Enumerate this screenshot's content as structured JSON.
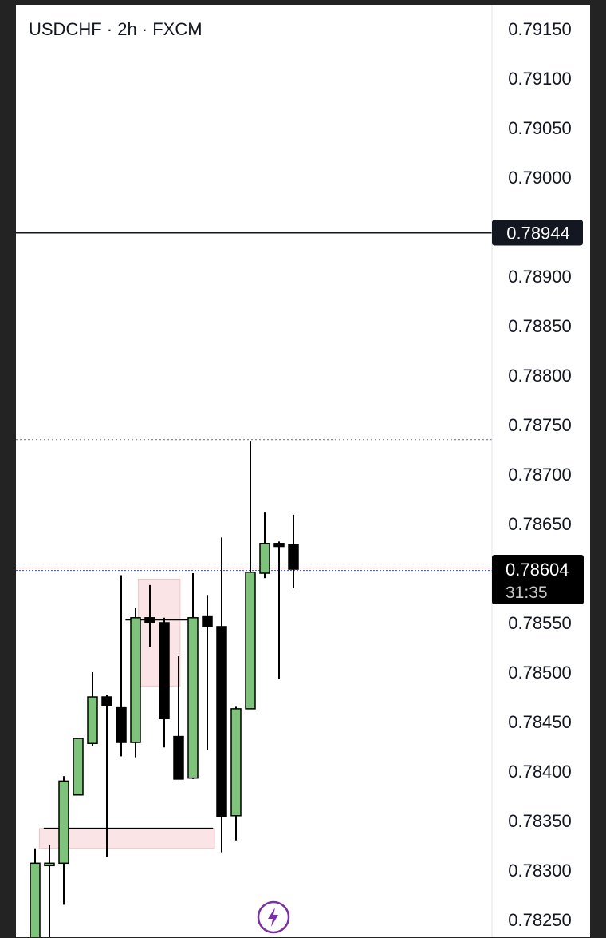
{
  "header": {
    "symbol_title": "USDCHF · 2h · FXCM"
  },
  "colors": {
    "up": "#7dc47a",
    "down": "#000000",
    "zone": "#fbe4e6",
    "zone_stroke": "#f3c2c7",
    "label_bg": "#131722",
    "accent": "#7b2fa6"
  },
  "icons": {
    "quick_action": "lightning-bolt-icon"
  },
  "chart_data": {
    "type": "candlestick",
    "symbol": "USDCHF",
    "timeframe": "2h",
    "source": "FXCM",
    "y_ticks": [
      "0.79150",
      "0.79100",
      "0.79050",
      "0.79000",
      "0.78900",
      "0.78850",
      "0.78800",
      "0.78750",
      "0.78700",
      "0.78650",
      "0.78550",
      "0.78500",
      "0.78450",
      "0.78400",
      "0.78350",
      "0.78300",
      "0.78250"
    ],
    "ylim": [
      0.7824,
      0.7917
    ],
    "horizontal_line_price": "0.78944",
    "current_price": "0.78604",
    "countdown": "31:35",
    "dotted_line_price": 0.78735,
    "zones": [
      {
        "from_bar": 7.2,
        "to_bar": 10.1,
        "top": 0.78594,
        "bottom": 0.78486
      },
      {
        "from_bar": 0.3,
        "to_bar": 12.5,
        "top": 0.78342,
        "bottom": 0.78322
      }
    ],
    "level_lines": [
      {
        "price": 0.78553,
        "from_bar": 6.3,
        "to_bar": 11.0
      },
      {
        "price": 0.78342,
        "from_bar": 0.6,
        "to_bar": 12.4
      }
    ],
    "candles": [
      {
        "o": 0.7823,
        "h": 0.78322,
        "l": 0.7823,
        "c": 0.78307
      },
      {
        "o": 0.78305,
        "h": 0.78325,
        "l": 0.7823,
        "c": 0.78307
      },
      {
        "o": 0.78307,
        "h": 0.78395,
        "l": 0.78265,
        "c": 0.7839
      },
      {
        "o": 0.78376,
        "h": 0.78433,
        "l": 0.78376,
        "c": 0.78433
      },
      {
        "o": 0.78428,
        "h": 0.785,
        "l": 0.78425,
        "c": 0.78475
      },
      {
        "o": 0.78475,
        "h": 0.78477,
        "l": 0.78313,
        "c": 0.78466
      },
      {
        "o": 0.78464,
        "h": 0.78598,
        "l": 0.78415,
        "c": 0.78429
      },
      {
        "o": 0.78429,
        "h": 0.78565,
        "l": 0.78414,
        "c": 0.78555
      },
      {
        "o": 0.78555,
        "h": 0.78588,
        "l": 0.78525,
        "c": 0.7855
      },
      {
        "o": 0.7855,
        "h": 0.78555,
        "l": 0.78424,
        "c": 0.78453
      },
      {
        "o": 0.78435,
        "h": 0.78516,
        "l": 0.78398,
        "c": 0.78392
      },
      {
        "o": 0.78393,
        "h": 0.786,
        "l": 0.78392,
        "c": 0.78555
      },
      {
        "o": 0.78556,
        "h": 0.78578,
        "l": 0.78421,
        "c": 0.78546
      },
      {
        "o": 0.78546,
        "h": 0.78636,
        "l": 0.78318,
        "c": 0.78354
      },
      {
        "o": 0.78355,
        "h": 0.78465,
        "l": 0.7833,
        "c": 0.78463
      },
      {
        "o": 0.78463,
        "h": 0.78733,
        "l": 0.78463,
        "c": 0.78601
      },
      {
        "o": 0.786,
        "h": 0.78662,
        "l": 0.78595,
        "c": 0.7863
      },
      {
        "o": 0.7863,
        "h": 0.78632,
        "l": 0.78493,
        "c": 0.78627
      },
      {
        "o": 0.78629,
        "h": 0.78659,
        "l": 0.78585,
        "c": 0.78604
      }
    ]
  }
}
